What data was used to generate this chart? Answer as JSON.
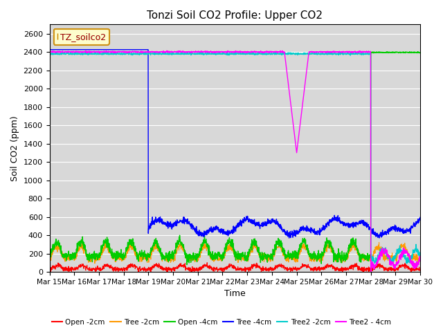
{
  "title": "Tonzi Soil CO2 Profile: Upper CO2",
  "ylabel": "Soil CO2 (ppm)",
  "xlabel": "Time",
  "ylim": [
    0,
    2700
  ],
  "yticks": [
    0,
    200,
    400,
    600,
    800,
    1000,
    1200,
    1400,
    1600,
    1800,
    2000,
    2200,
    2400,
    2600
  ],
  "background_color": "#d8d8d8",
  "legend_label": "TZ_soilco2",
  "colors": {
    "open_2cm": "#ff0000",
    "tree_2cm": "#ff9900",
    "open_4cm": "#00cc00",
    "tree_4cm": "#0000ff",
    "tree2_2cm": "#00cccc",
    "tree2_4cm": "#ff00ff"
  }
}
